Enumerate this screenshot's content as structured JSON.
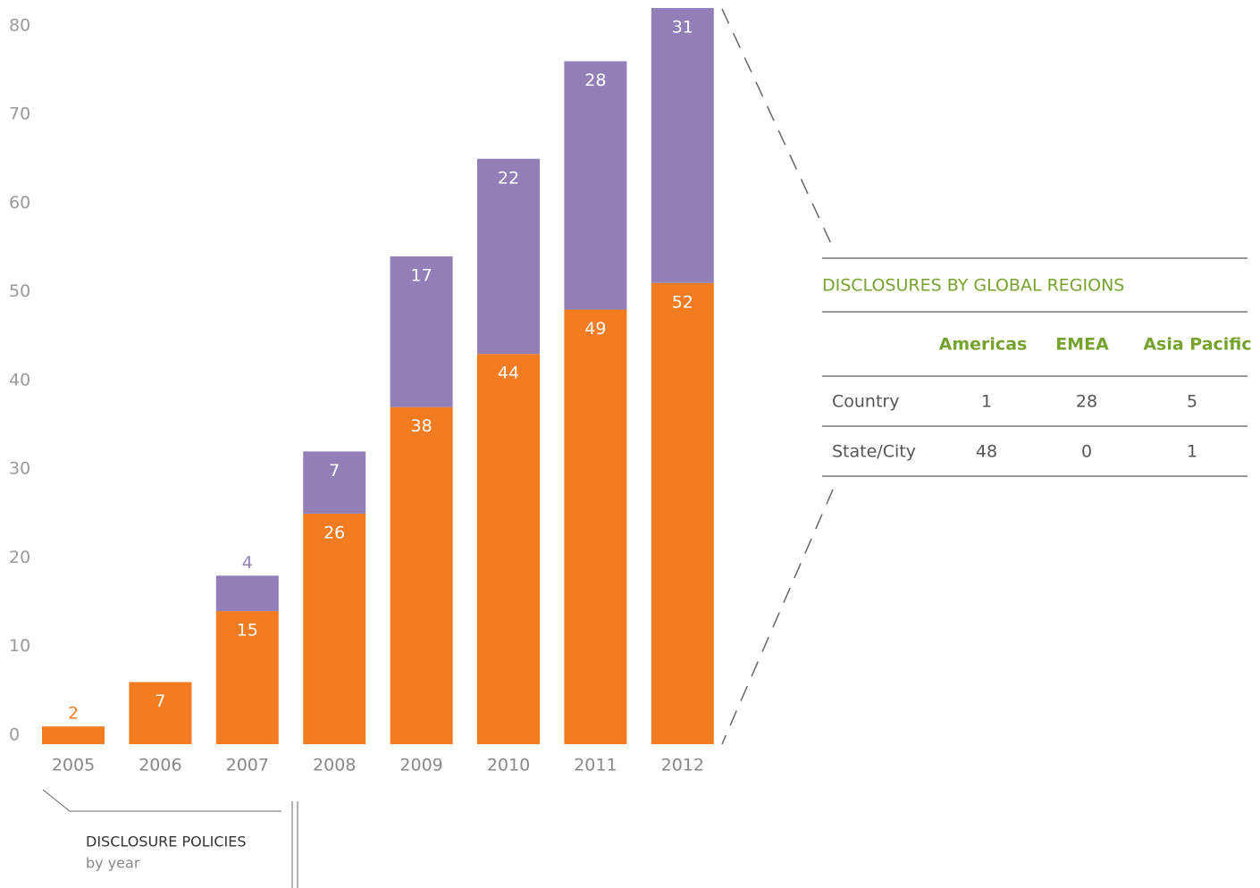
{
  "chart_data": {
    "type": "bar",
    "stacked": true,
    "categories": [
      "2005",
      "2006",
      "2007",
      "2008",
      "2009",
      "2010",
      "2011",
      "2012"
    ],
    "series": [
      {
        "color": "#f47c20",
        "values": [
          2,
          7,
          15,
          26,
          38,
          44,
          49,
          52
        ]
      },
      {
        "color": "#927fb7",
        "values": [
          null,
          null,
          4,
          7,
          17,
          22,
          28,
          31
        ]
      }
    ],
    "ylim": [
      0,
      83
    ],
    "yticks": [
      0,
      10,
      20,
      30,
      40,
      50,
      60,
      70,
      80
    ],
    "grid": false,
    "annotations": [
      "DISCLOSURE POLICIES",
      "by year"
    ]
  },
  "table": {
    "title": "DISCLOSURES BY GLOBAL REGIONS",
    "columns": [
      "Americas",
      "EMEA",
      "Asia Pacific"
    ],
    "rows": [
      {
        "label": "Country",
        "values": [
          1,
          28,
          5
        ]
      },
      {
        "label": "State/City",
        "values": [
          48,
          0,
          1
        ]
      }
    ]
  }
}
